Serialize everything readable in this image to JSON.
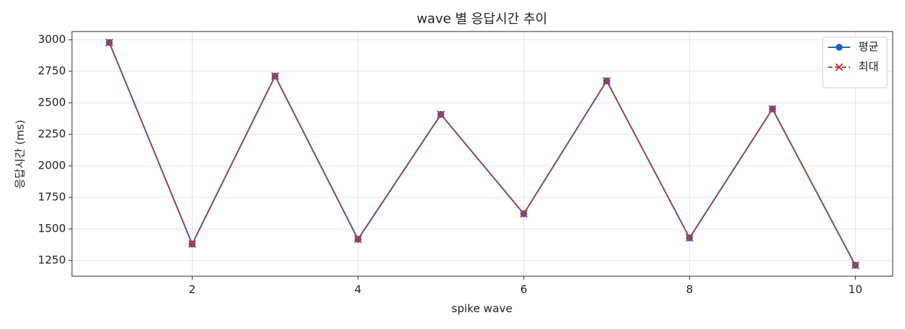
{
  "chart_data": {
    "type": "line",
    "title": "wave 별 응답시간 추이",
    "x_label": "spike wave",
    "y_label": "응답시간 (ms)",
    "x": [
      1,
      2,
      3,
      4,
      5,
      6,
      7,
      8,
      9,
      10
    ],
    "series": [
      {
        "name": "평균",
        "color": "#1565c0",
        "linestyle": "solid",
        "marker": "circle",
        "values": [
          2978,
          1380,
          2712,
          1418,
          2408,
          1620,
          2674,
          1429,
          2451,
          1212
        ]
      },
      {
        "name": "최대",
        "color": "#d32f2f",
        "linestyle": "dashed",
        "marker": "x",
        "values": [
          2978,
          1380,
          2712,
          1418,
          2408,
          1620,
          2674,
          1429,
          2451,
          1212
        ]
      }
    ],
    "xlim": [
      0.55,
      10.45
    ],
    "xticks": [
      2,
      4,
      6,
      8,
      10
    ],
    "ylim": [
      1125,
      3065
    ],
    "yticks": [
      1250,
      1500,
      1750,
      2000,
      2250,
      2500,
      2750,
      3000
    ],
    "grid": true,
    "legend": "upper right"
  }
}
